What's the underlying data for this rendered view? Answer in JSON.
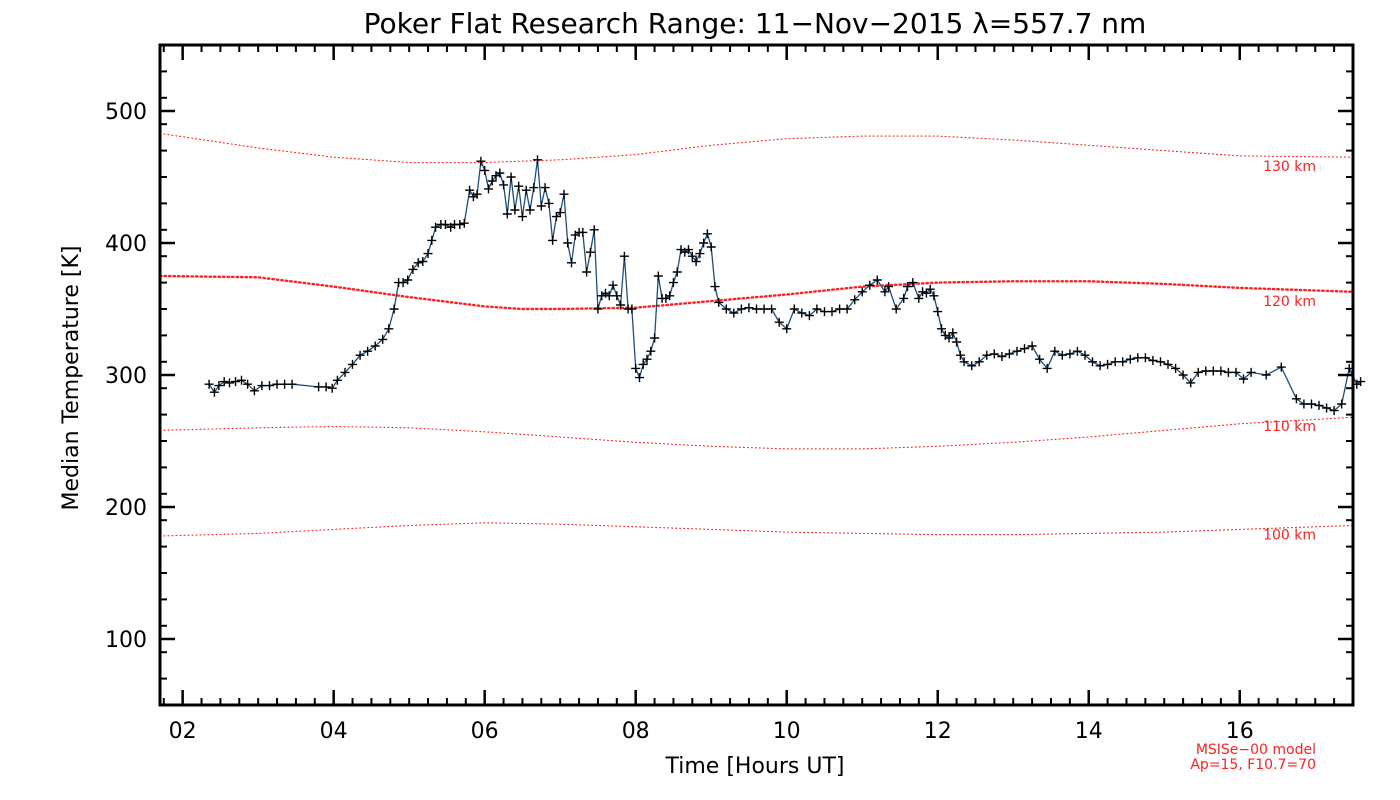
{
  "chart_data": {
    "type": "line",
    "title": "Poker Flat Research Range: 11−Nov−2015 λ=557.7 nm",
    "xlabel": "Time [Hours UT]",
    "ylabel": "Median Temperature [K]",
    "xlim": [
      1.7,
      17.5
    ],
    "ylim": [
      50,
      550
    ],
    "x_ticks": [
      2,
      4,
      6,
      8,
      10,
      12,
      14,
      16
    ],
    "x_tick_labels": [
      "02",
      "04",
      "06",
      "08",
      "10",
      "12",
      "14",
      "16"
    ],
    "y_ticks": [
      100,
      200,
      300,
      400,
      500
    ],
    "y_tick_labels": [
      "100",
      "200",
      "300",
      "400",
      "500"
    ],
    "grid": false,
    "colors": {
      "measured": "#1f4e79",
      "marker": "#000000",
      "model": "#ff2020"
    },
    "series": [
      {
        "values": [
          [
            2.35,
            293
          ],
          [
            2.42,
            287
          ],
          [
            2.48,
            292
          ],
          [
            2.55,
            295
          ],
          [
            2.62,
            294
          ],
          [
            2.7,
            295
          ],
          [
            2.78,
            296
          ],
          [
            2.86,
            293
          ],
          [
            2.95,
            288
          ],
          [
            3.05,
            292
          ],
          [
            3.15,
            292
          ],
          [
            3.25,
            293
          ],
          [
            3.35,
            293
          ],
          [
            3.45,
            293
          ],
          [
            3.8,
            291
          ],
          [
            3.9,
            291
          ],
          [
            3.98,
            290
          ],
          [
            4.05,
            296
          ],
          [
            4.15,
            302
          ],
          [
            4.25,
            308
          ],
          [
            4.35,
            315
          ],
          [
            4.45,
            318
          ],
          [
            4.55,
            322
          ],
          [
            4.65,
            327
          ],
          [
            4.73,
            335
          ],
          [
            4.8,
            350
          ],
          [
            4.86,
            370
          ],
          [
            4.92,
            370
          ],
          [
            4.98,
            372
          ],
          [
            5.05,
            380
          ],
          [
            5.12,
            385
          ],
          [
            5.18,
            386
          ],
          [
            5.25,
            392
          ],
          [
            5.3,
            402
          ],
          [
            5.35,
            412
          ],
          [
            5.42,
            414
          ],
          [
            5.48,
            414
          ],
          [
            5.55,
            412
          ],
          [
            5.6,
            414
          ],
          [
            5.67,
            414
          ],
          [
            5.73,
            415
          ],
          [
            5.8,
            440
          ],
          [
            5.85,
            435
          ],
          [
            5.9,
            437
          ],
          [
            5.95,
            462
          ],
          [
            6.0,
            455
          ],
          [
            6.05,
            441
          ],
          [
            6.1,
            447
          ],
          [
            6.15,
            451
          ],
          [
            6.2,
            453
          ],
          [
            6.25,
            444
          ],
          [
            6.3,
            422
          ],
          [
            6.35,
            450
          ],
          [
            6.4,
            425
          ],
          [
            6.45,
            443
          ],
          [
            6.5,
            420
          ],
          [
            6.55,
            440
          ],
          [
            6.6,
            425
          ],
          [
            6.65,
            442
          ],
          [
            6.7,
            463
          ],
          [
            6.75,
            428
          ],
          [
            6.8,
            442
          ],
          [
            6.85,
            430
          ],
          [
            6.9,
            402
          ],
          [
            6.95,
            420
          ],
          [
            7.0,
            423
          ],
          [
            7.05,
            437
          ],
          [
            7.1,
            400
          ],
          [
            7.15,
            385
          ],
          [
            7.2,
            406
          ],
          [
            7.25,
            408
          ],
          [
            7.3,
            408
          ],
          [
            7.35,
            378
          ],
          [
            7.4,
            393
          ],
          [
            7.45,
            410
          ],
          [
            7.5,
            350
          ],
          [
            7.55,
            360
          ],
          [
            7.6,
            362
          ],
          [
            7.65,
            360
          ],
          [
            7.7,
            368
          ],
          [
            7.75,
            360
          ],
          [
            7.8,
            353
          ],
          [
            7.85,
            390
          ],
          [
            7.9,
            350
          ],
          [
            7.95,
            350
          ],
          [
            8.0,
            305
          ],
          [
            8.05,
            298
          ],
          [
            8.1,
            308
          ],
          [
            8.15,
            312
          ],
          [
            8.2,
            318
          ],
          [
            8.25,
            328
          ],
          [
            8.3,
            375
          ],
          [
            8.35,
            358
          ],
          [
            8.4,
            358
          ],
          [
            8.45,
            360
          ],
          [
            8.5,
            370
          ],
          [
            8.55,
            378
          ],
          [
            8.6,
            395
          ],
          [
            8.65,
            393
          ],
          [
            8.7,
            395
          ],
          [
            8.75,
            390
          ],
          [
            8.8,
            386
          ],
          [
            8.85,
            392
          ],
          [
            8.9,
            400
          ],
          [
            8.95,
            407
          ],
          [
            9.0,
            397
          ],
          [
            9.05,
            367
          ],
          [
            9.1,
            355
          ],
          [
            9.2,
            350
          ],
          [
            9.3,
            347
          ],
          [
            9.4,
            350
          ],
          [
            9.5,
            351
          ],
          [
            9.6,
            350
          ],
          [
            9.7,
            350
          ],
          [
            9.8,
            350
          ],
          [
            9.9,
            340
          ],
          [
            10.0,
            335
          ],
          [
            10.1,
            350
          ],
          [
            10.2,
            347
          ],
          [
            10.3,
            345
          ],
          [
            10.4,
            350
          ],
          [
            10.5,
            348
          ],
          [
            10.6,
            348
          ],
          [
            10.7,
            350
          ],
          [
            10.8,
            350
          ],
          [
            10.9,
            357
          ],
          [
            11.0,
            363
          ],
          [
            11.1,
            368
          ],
          [
            11.2,
            372
          ],
          [
            11.3,
            363
          ],
          [
            11.35,
            367
          ],
          [
            11.45,
            350
          ],
          [
            11.55,
            358
          ],
          [
            11.6,
            367
          ],
          [
            11.67,
            370
          ],
          [
            11.75,
            358
          ],
          [
            11.8,
            363
          ],
          [
            11.85,
            362
          ],
          [
            11.9,
            365
          ],
          [
            11.95,
            360
          ],
          [
            12.0,
            348
          ],
          [
            12.05,
            335
          ],
          [
            12.1,
            330
          ],
          [
            12.15,
            328
          ],
          [
            12.2,
            332
          ],
          [
            12.25,
            325
          ],
          [
            12.3,
            315
          ],
          [
            12.35,
            310
          ],
          [
            12.45,
            307
          ],
          [
            12.55,
            310
          ],
          [
            12.65,
            315
          ],
          [
            12.75,
            316
          ],
          [
            12.85,
            314
          ],
          [
            12.95,
            316
          ],
          [
            13.05,
            318
          ],
          [
            13.15,
            320
          ],
          [
            13.25,
            322
          ],
          [
            13.35,
            312
          ],
          [
            13.45,
            305
          ],
          [
            13.55,
            318
          ],
          [
            13.65,
            315
          ],
          [
            13.75,
            316
          ],
          [
            13.85,
            318
          ],
          [
            13.95,
            315
          ],
          [
            14.05,
            310
          ],
          [
            14.15,
            307
          ],
          [
            14.25,
            308
          ],
          [
            14.35,
            310
          ],
          [
            14.45,
            310
          ],
          [
            14.55,
            312
          ],
          [
            14.65,
            313
          ],
          [
            14.75,
            313
          ],
          [
            14.85,
            311
          ],
          [
            14.95,
            310
          ],
          [
            15.05,
            308
          ],
          [
            15.15,
            305
          ],
          [
            15.25,
            300
          ],
          [
            15.35,
            294
          ],
          [
            15.45,
            302
          ],
          [
            15.55,
            303
          ],
          [
            15.65,
            303
          ],
          [
            15.75,
            303
          ],
          [
            15.85,
            302
          ],
          [
            15.95,
            302
          ],
          [
            16.05,
            297
          ],
          [
            16.15,
            302
          ],
          [
            16.35,
            300
          ],
          [
            16.55,
            306
          ],
          [
            16.75,
            282
          ],
          [
            16.85,
            278
          ],
          [
            16.95,
            278
          ],
          [
            17.05,
            277
          ],
          [
            17.15,
            275
          ],
          [
            17.25,
            273
          ],
          [
            17.35,
            278
          ],
          [
            17.45,
            305
          ],
          [
            17.55,
            293
          ],
          [
            17.6,
            295
          ]
        ]
      }
    ],
    "model_curves": [
      {
        "label": "130 km",
        "dash": "thin",
        "points": [
          [
            1.7,
            483
          ],
          [
            3.0,
            472
          ],
          [
            4.0,
            465
          ],
          [
            5.0,
            461
          ],
          [
            6.0,
            461
          ],
          [
            7.0,
            463
          ],
          [
            8.0,
            467
          ],
          [
            9.0,
            474
          ],
          [
            10.0,
            479
          ],
          [
            11.0,
            481
          ],
          [
            12.0,
            481
          ],
          [
            13.0,
            478
          ],
          [
            14.0,
            474
          ],
          [
            15.0,
            470
          ],
          [
            16.0,
            466
          ],
          [
            17.5,
            465
          ]
        ]
      },
      {
        "label": "120 km",
        "dash": "thick",
        "points": [
          [
            1.7,
            375
          ],
          [
            3.0,
            374
          ],
          [
            4.0,
            367
          ],
          [
            5.0,
            359
          ],
          [
            6.0,
            352
          ],
          [
            6.5,
            350
          ],
          [
            7.0,
            350
          ],
          [
            8.0,
            351
          ],
          [
            9.0,
            356
          ],
          [
            10.0,
            361
          ],
          [
            11.0,
            367
          ],
          [
            12.0,
            370
          ],
          [
            13.0,
            371
          ],
          [
            14.0,
            371
          ],
          [
            15.0,
            369
          ],
          [
            16.0,
            366
          ],
          [
            17.5,
            363
          ]
        ]
      },
      {
        "label": "110 km",
        "dash": "thin",
        "points": [
          [
            1.7,
            258
          ],
          [
            3.0,
            260
          ],
          [
            4.0,
            261
          ],
          [
            5.0,
            260
          ],
          [
            6.0,
            257
          ],
          [
            7.0,
            253
          ],
          [
            8.0,
            249
          ],
          [
            9.0,
            246
          ],
          [
            10.0,
            244
          ],
          [
            11.0,
            244
          ],
          [
            12.0,
            246
          ],
          [
            13.0,
            249
          ],
          [
            14.0,
            253
          ],
          [
            15.0,
            258
          ],
          [
            16.0,
            263
          ],
          [
            17.5,
            268
          ]
        ]
      },
      {
        "label": "100 km",
        "dash": "thin",
        "points": [
          [
            1.7,
            178
          ],
          [
            3.0,
            180
          ],
          [
            4.0,
            183
          ],
          [
            5.0,
            186
          ],
          [
            6.0,
            188
          ],
          [
            7.0,
            187
          ],
          [
            8.0,
            185
          ],
          [
            9.0,
            183
          ],
          [
            10.0,
            181
          ],
          [
            11.0,
            180
          ],
          [
            12.0,
            179
          ],
          [
            13.0,
            179
          ],
          [
            14.0,
            180
          ],
          [
            15.0,
            181
          ],
          [
            16.0,
            183
          ],
          [
            17.5,
            186
          ]
        ]
      }
    ],
    "model_note": [
      "MSISe−00 model",
      "Ap=15, F10.7=70"
    ]
  }
}
